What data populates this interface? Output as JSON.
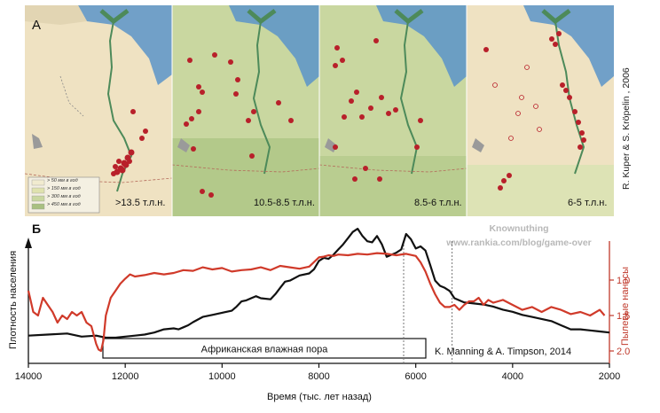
{
  "maps": {
    "panel_letter": "A",
    "panels": [
      {
        "label": ">13.5 т.л.н."
      },
      {
        "label": "10.5-8.5 т.л.н."
      },
      {
        "label": "8.5-6 т.л.н."
      },
      {
        "label": "6-5 т.л.н."
      }
    ],
    "legend": [
      "> 50 мм в год",
      "> 150 мм в год",
      "> 300 мм в год",
      "> 450 мм в год"
    ],
    "credit": "R. Kuper & S. Kröpelin , 2006",
    "colors": {
      "sand": "#efe2c2",
      "sea": "#5a94c9",
      "green": "#c5d59c",
      "nile": "#4d8a5a",
      "dot": "#b8202a"
    }
  },
  "watermark": {
    "line1": "Knownuthing",
    "line2": "www.rankia.com/blog/game-over"
  },
  "chart_data": {
    "type": "line",
    "panel_letter": "Б",
    "xlabel": "Время (тыс. лет назад)",
    "ylabel_left": "Плотность населения",
    "ylabel_right": "Пылевые наносы",
    "xlim": [
      14000,
      2000
    ],
    "x_reversed": true,
    "xticks": [
      14000,
      12000,
      10000,
      8000,
      6000,
      4000,
      2000
    ],
    "xtick_labels": [
      "14000",
      "12000",
      "10000",
      "8000",
      "6000",
      "4000",
      "2000"
    ],
    "ylim_right": [
      0.6,
      2.0
    ],
    "yticks_right": [
      1.0,
      1.5,
      2.0
    ],
    "ytick_labels_right": [
      "1.0",
      "1.5",
      "2.0"
    ],
    "y_right_inverted": true,
    "y_left_ticks_shown": false,
    "ylim_left": [
      0,
      1
    ],
    "annotation_box": "Африканская влажная пора",
    "credit": "K. Manning & A. Timpson, 2014",
    "vlines": [
      6250,
      5250
    ],
    "series": [
      {
        "color": "#111111",
        "axis": "left",
        "x": [
          14000,
          13600,
          13200,
          12900,
          12600,
          12400,
          12200,
          12000,
          11800,
          11600,
          11400,
          11200,
          11000,
          10900,
          10800,
          10700,
          10600,
          10400,
          10200,
          10000,
          9800,
          9700,
          9600,
          9500,
          9400,
          9300,
          9200,
          9000,
          8900,
          8800,
          8700,
          8600,
          8400,
          8200,
          8100,
          8000,
          7900,
          7800,
          7700,
          7600,
          7500,
          7400,
          7300,
          7200,
          7100,
          7000,
          6900,
          6800,
          6700,
          6600,
          6500,
          6400,
          6300,
          6200,
          6100,
          6000,
          5900,
          5800,
          5700,
          5600,
          5500,
          5400,
          5300,
          5200,
          5000,
          4800,
          4600,
          4400,
          4200,
          4000,
          3800,
          3600,
          3400,
          3200,
          3000,
          2800,
          2600,
          2400,
          2200,
          2000
        ],
        "y": [
          0.02,
          0.03,
          0.04,
          0.01,
          0.02,
          0.0,
          0.0,
          0.01,
          0.02,
          0.03,
          0.05,
          0.08,
          0.09,
          0.08,
          0.1,
          0.12,
          0.15,
          0.2,
          0.22,
          0.24,
          0.26,
          0.3,
          0.35,
          0.36,
          0.38,
          0.4,
          0.38,
          0.37,
          0.42,
          0.48,
          0.54,
          0.55,
          0.6,
          0.62,
          0.66,
          0.74,
          0.77,
          0.76,
          0.8,
          0.85,
          0.9,
          0.96,
          1.02,
          1.05,
          0.98,
          0.93,
          0.92,
          0.98,
          0.9,
          0.78,
          0.8,
          0.82,
          0.85,
          1.0,
          0.95,
          0.86,
          0.88,
          0.84,
          0.7,
          0.55,
          0.5,
          0.48,
          0.45,
          0.38,
          0.34,
          0.33,
          0.32,
          0.3,
          0.27,
          0.25,
          0.22,
          0.2,
          0.18,
          0.16,
          0.12,
          0.08,
          0.08,
          0.07,
          0.06,
          0.05
        ]
      },
      {
        "color": "#d03a2a",
        "axis": "right",
        "x": [
          14000,
          13900,
          13800,
          13700,
          13600,
          13500,
          13400,
          13300,
          13200,
          13100,
          13000,
          12900,
          12800,
          12700,
          12600,
          12550,
          12500,
          12450,
          12400,
          12300,
          12200,
          12100,
          12000,
          11900,
          11800,
          11600,
          11400,
          11200,
          11000,
          10800,
          10600,
          10400,
          10200,
          10000,
          9800,
          9600,
          9400,
          9200,
          9000,
          8800,
          8600,
          8400,
          8200,
          8000,
          7900,
          7800,
          7700,
          7600,
          7400,
          7200,
          7000,
          6800,
          6600,
          6400,
          6200,
          6000,
          5900,
          5800,
          5700,
          5600,
          5500,
          5400,
          5300,
          5200,
          5100,
          5000,
          4900,
          4800,
          4700,
          4600,
          4500,
          4400,
          4300,
          4200,
          4000,
          3800,
          3600,
          3400,
          3200,
          3000,
          2800,
          2600,
          2400,
          2200,
          2100
        ],
        "y": [
          1.15,
          1.45,
          1.5,
          1.25,
          1.35,
          1.45,
          1.6,
          1.5,
          1.55,
          1.45,
          1.5,
          1.45,
          1.6,
          1.65,
          1.9,
          1.98,
          2.0,
          1.85,
          1.5,
          1.25,
          1.15,
          1.05,
          0.98,
          0.92,
          0.95,
          0.93,
          0.9,
          0.92,
          0.9,
          0.86,
          0.87,
          0.82,
          0.85,
          0.83,
          0.88,
          0.86,
          0.85,
          0.82,
          0.86,
          0.8,
          0.82,
          0.84,
          0.81,
          0.68,
          0.67,
          0.65,
          0.66,
          0.64,
          0.65,
          0.63,
          0.64,
          0.62,
          0.63,
          0.65,
          0.63,
          0.66,
          0.75,
          0.88,
          1.05,
          1.2,
          1.32,
          1.38,
          1.38,
          1.35,
          1.42,
          1.35,
          1.3,
          1.3,
          1.25,
          1.35,
          1.28,
          1.32,
          1.3,
          1.28,
          1.35,
          1.42,
          1.38,
          1.45,
          1.38,
          1.42,
          1.48,
          1.45,
          1.5,
          1.42,
          1.5
        ]
      }
    ]
  }
}
